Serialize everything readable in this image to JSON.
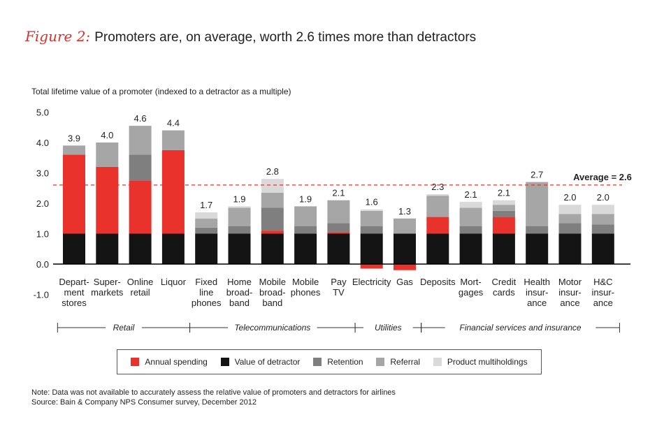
{
  "header": {
    "figure_label": "Figure 2:",
    "title": "Promoters are, on average, worth 2.6 times more than detractors"
  },
  "chart_data": {
    "type": "bar",
    "stacked": true,
    "subtitle": "Total lifetime value of a promoter (indexed to a detractor as a multiple)",
    "ylim": [
      -1.0,
      5.0
    ],
    "yticks": [
      "5.0",
      "4.0",
      "3.0",
      "2.0",
      "1.0",
      "0.0",
      "-1.0"
    ],
    "average": {
      "value": 2.6,
      "label": "Average = 2.6"
    },
    "categories": [
      "Depart- ment stores",
      "Super- markets",
      "Online retail",
      "Liquor",
      "Fixed line phones",
      "Home broad- band",
      "Mobile broad- band",
      "Mobile phones",
      "Pay TV",
      "Electricity",
      "Gas",
      "Deposits",
      "Mort- gages",
      "Credit cards",
      "Health insur- ance",
      "Motor insur- ance",
      "H&C insur- ance"
    ],
    "totals": [
      "3.9",
      "4.0",
      "4.6",
      "4.4",
      "1.7",
      "1.9",
      "2.8",
      "1.9",
      "2.1",
      "1.6",
      "1.3",
      "2.3",
      "2.1",
      "2.1",
      "2.7",
      "2.0",
      "2.0"
    ],
    "series": [
      {
        "name": "Value of detractor",
        "color": "#141414",
        "values": [
          1.0,
          1.0,
          1.0,
          1.0,
          1.0,
          1.0,
          1.0,
          1.0,
          1.0,
          1.0,
          1.0,
          1.0,
          1.0,
          1.0,
          1.0,
          1.0,
          1.0
        ]
      },
      {
        "name": "Annual spending",
        "color": "#e8322b",
        "values": [
          2.6,
          2.2,
          1.75,
          2.75,
          0,
          0,
          0.1,
          0,
          0.05,
          -0.15,
          -0.2,
          0.55,
          0,
          0.55,
          0,
          0,
          0
        ]
      },
      {
        "name": "Retention",
        "color": "#7f7f7f",
        "values": [
          0,
          0,
          0.85,
          0,
          0.2,
          0.25,
          0.75,
          0.25,
          0.3,
          0.25,
          0,
          0,
          0.25,
          0.2,
          0.25,
          0.35,
          0.3
        ]
      },
      {
        "name": "Referral",
        "color": "#a6a6a6",
        "values": [
          0.3,
          0.8,
          0.95,
          0.65,
          0.3,
          0.6,
          0.5,
          0.65,
          0.75,
          0.5,
          0.5,
          0.7,
          0.6,
          0.2,
          1.45,
          0.3,
          0.35
        ]
      },
      {
        "name": "Product multiholdings",
        "color": "#d9d9d9",
        "values": [
          0,
          0,
          0,
          0,
          0.2,
          0.05,
          0.45,
          0,
          0,
          0.05,
          0,
          0.05,
          0.2,
          0.15,
          0,
          0.3,
          0.3
        ]
      }
    ],
    "groups": [
      {
        "label": "Retail",
        "start": 0,
        "end": 3
      },
      {
        "label": "Telecommunications",
        "start": 4,
        "end": 8
      },
      {
        "label": "Utilities",
        "start": 9,
        "end": 10
      },
      {
        "label": "Financial services and insurance",
        "start": 11,
        "end": 16
      }
    ]
  },
  "legend": [
    {
      "label": "Annual spending",
      "color": "#e8322b"
    },
    {
      "label": "Value of detractor",
      "color": "#141414"
    },
    {
      "label": "Retention",
      "color": "#7f7f7f"
    },
    {
      "label": "Referral",
      "color": "#a6a6a6"
    },
    {
      "label": "Product multiholdings",
      "color": "#d9d9d9"
    }
  ],
  "footer": {
    "note": "Note: Data was not available to accurately assess the relative value of promoters and detractors for airlines",
    "source": "Source: Bain & Company NPS Consumer survey, December 2012"
  }
}
